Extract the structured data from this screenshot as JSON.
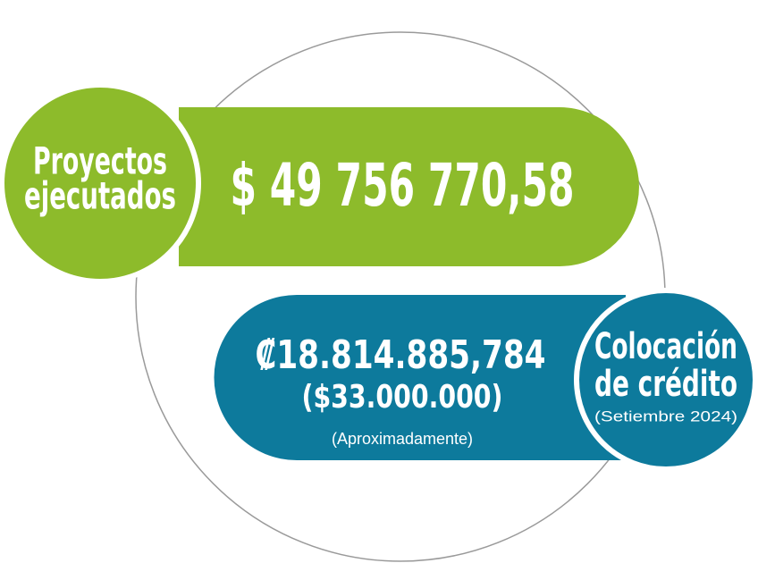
{
  "executed": {
    "label_lines": [
      "Proyectos",
      "ejecutados"
    ],
    "amount": "$ 49 756 770,58"
  },
  "credit": {
    "label_lines": [
      "Colocación",
      "de crédito"
    ],
    "period": "(Setiembre 2024)",
    "amount_colones": "₡18.814.885,784",
    "amount_dollars": "($33.000.000)",
    "note": "(Aproximadamente)"
  }
}
